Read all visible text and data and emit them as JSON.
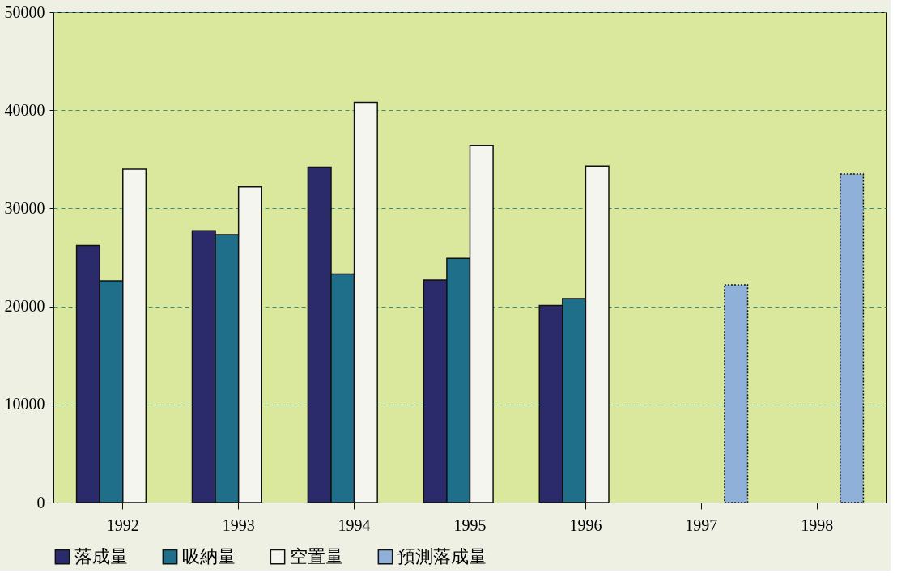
{
  "chart_data": {
    "type": "bar",
    "categories": [
      "1992",
      "1993",
      "1994",
      "1995",
      "1996",
      "1997",
      "1998"
    ],
    "series": [
      {
        "name": "落成量",
        "color": "#2b2a6b",
        "values": [
          26200,
          27700,
          34200,
          22700,
          20100,
          null,
          null
        ]
      },
      {
        "name": "吸納量",
        "color": "#1f6f8a",
        "values": [
          22600,
          27300,
          23300,
          24900,
          20800,
          null,
          null
        ]
      },
      {
        "name": "空置量",
        "color": "#f5f5f0",
        "values": [
          34000,
          32200,
          40800,
          36400,
          34300,
          null,
          null
        ]
      },
      {
        "name": "預測落成量",
        "color": "#8fb0d8",
        "line_style": "dotted",
        "values": [
          null,
          null,
          null,
          null,
          null,
          22200,
          33500
        ]
      }
    ],
    "ylim": [
      0,
      50000
    ],
    "yticks": [
      0,
      10000,
      20000,
      30000,
      40000,
      50000
    ],
    "grid": "y",
    "legend": "bottom"
  }
}
